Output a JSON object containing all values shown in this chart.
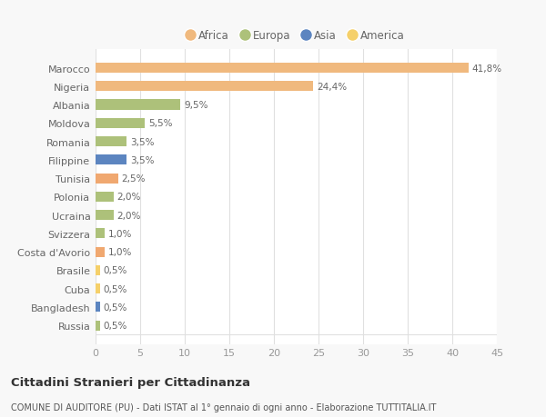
{
  "countries": [
    "Marocco",
    "Nigeria",
    "Albania",
    "Moldova",
    "Romania",
    "Filippine",
    "Tunisia",
    "Polonia",
    "Ucraina",
    "Svizzera",
    "Costa d'Avorio",
    "Brasile",
    "Cuba",
    "Bangladesh",
    "Russia"
  ],
  "values": [
    41.8,
    24.4,
    9.5,
    5.5,
    3.5,
    3.5,
    2.5,
    2.0,
    2.0,
    1.0,
    1.0,
    0.5,
    0.5,
    0.5,
    0.5
  ],
  "labels": [
    "41,8%",
    "24,4%",
    "9,5%",
    "5,5%",
    "3,5%",
    "3,5%",
    "2,5%",
    "2,0%",
    "2,0%",
    "1,0%",
    "1,0%",
    "0,5%",
    "0,5%",
    "0,5%",
    "0,5%"
  ],
  "colors": [
    "#f0b97e",
    "#f0b97e",
    "#adc17a",
    "#adc17a",
    "#adc17a",
    "#5c85c0",
    "#f0a870",
    "#adc17a",
    "#adc17a",
    "#adc17a",
    "#f0a870",
    "#f5d06a",
    "#f5d06a",
    "#5c85c0",
    "#adc17a"
  ],
  "legend_labels": [
    "Africa",
    "Europa",
    "Asia",
    "America"
  ],
  "legend_colors": [
    "#f0b97e",
    "#adc17a",
    "#5c85c0",
    "#f5d06a"
  ],
  "xlim": [
    0,
    45
  ],
  "xticks": [
    0,
    5,
    10,
    15,
    20,
    25,
    30,
    35,
    40,
    45
  ],
  "title": "Cittadini Stranieri per Cittadinanza",
  "subtitle": "COMUNE DI AUDITORE (PU) - Dati ISTAT al 1° gennaio di ogni anno - Elaborazione TUTTITALIA.IT",
  "bg_color": "#f8f8f8",
  "plot_bg_color": "#ffffff",
  "grid_color": "#e0e0e0",
  "label_color": "#666666",
  "tick_color": "#999999"
}
